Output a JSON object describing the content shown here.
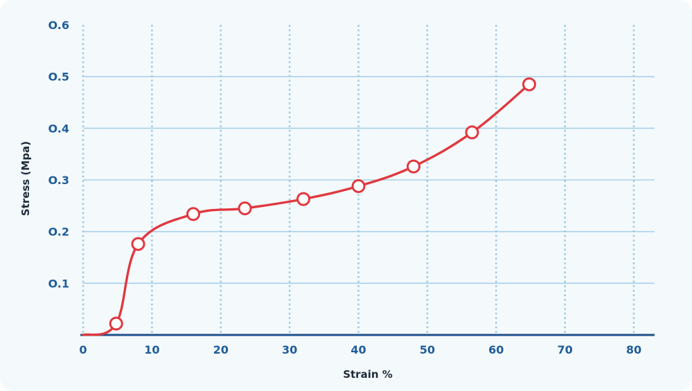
{
  "chart_data": {
    "type": "line",
    "title": "",
    "xlabel": "Strain %",
    "ylabel": "Stress (Mpa)",
    "xlim": [
      0,
      80
    ],
    "ylim": [
      0,
      0.6
    ],
    "x_ticks": [
      "0",
      "10",
      "20",
      "30",
      "40",
      "50",
      "60",
      "70",
      "80"
    ],
    "y_ticks": [
      "O.1",
      "O.2",
      "O.3",
      "O.4",
      "O.5",
      "O.6"
    ],
    "grid": true,
    "series": [
      {
        "x": [
          0,
          4.8,
          8,
          16,
          23.5,
          32,
          40,
          48,
          56.5,
          64.8
        ],
        "y": [
          0,
          0.022,
          0.176,
          0.234,
          0.245,
          0.263,
          0.288,
          0.326,
          0.392,
          0.485
        ]
      }
    ],
    "colors": {
      "line": "#e0383e",
      "marker_fill": "#ffffff",
      "axis": "#1f4f8a",
      "grid_horizontal": "#a9cfe8",
      "grid_vertical": "#9ccbe4",
      "tick_text": "#1f5d99"
    }
  }
}
